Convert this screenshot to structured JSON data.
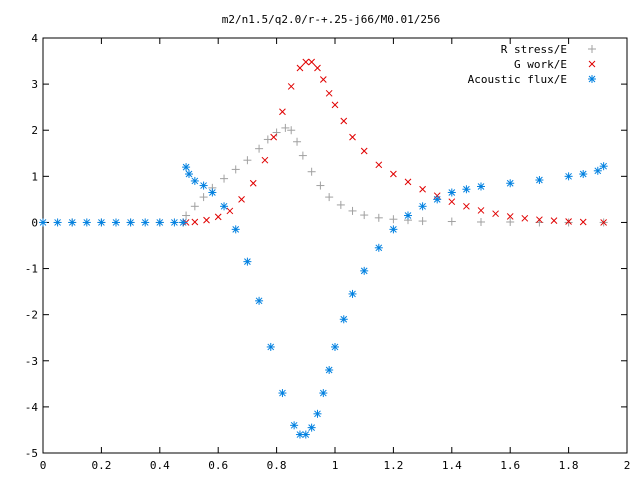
{
  "chart_data": {
    "type": "scatter",
    "title": "m2/n1.5/q2.0/r-+.25-j66/M0.01/256",
    "xlabel": "",
    "ylabel": "",
    "xlim": [
      0,
      2
    ],
    "ylim": [
      -5,
      4
    ],
    "xticks": [
      "0",
      "0.2",
      "0.4",
      "0.6",
      "0.8",
      "1",
      "1.2",
      "1.4",
      "1.6",
      "1.8",
      "2"
    ],
    "yticks": [
      "4",
      "3",
      "2",
      "1",
      "0",
      "-1",
      "-2",
      "-3",
      "-4",
      "-5"
    ],
    "grid": false,
    "legend_position": "top-right",
    "series": [
      {
        "name": "R stress/E",
        "marker": "plus",
        "color": "#a0a0a0",
        "x": [
          0.0,
          0.1,
          0.2,
          0.3,
          0.4,
          0.48,
          0.49,
          0.52,
          0.55,
          0.58,
          0.62,
          0.66,
          0.7,
          0.74,
          0.77,
          0.8,
          0.83,
          0.85,
          0.87,
          0.89,
          0.92,
          0.95,
          0.98,
          1.02,
          1.06,
          1.1,
          1.15,
          1.2,
          1.25,
          1.3,
          1.4,
          1.5,
          1.6,
          1.7,
          1.8,
          1.92
        ],
        "y": [
          0.0,
          0.0,
          0.0,
          0.0,
          0.0,
          0.0,
          0.15,
          0.35,
          0.55,
          0.75,
          0.95,
          1.15,
          1.35,
          1.6,
          1.8,
          1.95,
          2.05,
          2.0,
          1.75,
          1.45,
          1.1,
          0.8,
          0.55,
          0.38,
          0.25,
          0.16,
          0.1,
          0.07,
          0.05,
          0.03,
          0.02,
          0.01,
          0.01,
          0.0,
          0.0,
          0.0
        ]
      },
      {
        "name": "G work/E",
        "marker": "cross",
        "color": "#e00000",
        "x": [
          0.49,
          0.52,
          0.56,
          0.6,
          0.64,
          0.68,
          0.72,
          0.76,
          0.79,
          0.82,
          0.85,
          0.88,
          0.9,
          0.92,
          0.94,
          0.96,
          0.98,
          1.0,
          1.03,
          1.06,
          1.1,
          1.15,
          1.2,
          1.25,
          1.3,
          1.35,
          1.4,
          1.45,
          1.5,
          1.55,
          1.6,
          1.65,
          1.7,
          1.75,
          1.8,
          1.85,
          1.92
        ],
        "y": [
          0.0,
          0.01,
          0.05,
          0.12,
          0.25,
          0.5,
          0.85,
          1.35,
          1.85,
          2.4,
          2.95,
          3.35,
          3.48,
          3.48,
          3.35,
          3.1,
          2.8,
          2.55,
          2.2,
          1.85,
          1.55,
          1.25,
          1.05,
          0.88,
          0.72,
          0.58,
          0.45,
          0.35,
          0.26,
          0.19,
          0.13,
          0.09,
          0.06,
          0.04,
          0.02,
          0.01,
          0.0
        ]
      },
      {
        "name": "Acoustic flux/E",
        "marker": "star",
        "color": "#0080e0",
        "x": [
          0.0,
          0.05,
          0.1,
          0.15,
          0.2,
          0.25,
          0.3,
          0.35,
          0.4,
          0.45,
          0.48,
          0.49,
          0.5,
          0.52,
          0.55,
          0.58,
          0.62,
          0.66,
          0.7,
          0.74,
          0.78,
          0.82,
          0.86,
          0.88,
          0.9,
          0.92,
          0.94,
          0.96,
          0.98,
          1.0,
          1.03,
          1.06,
          1.1,
          1.15,
          1.2,
          1.25,
          1.3,
          1.35,
          1.4,
          1.45,
          1.5,
          1.6,
          1.7,
          1.8,
          1.85,
          1.9,
          1.92
        ],
        "y": [
          0.0,
          0.0,
          0.0,
          0.0,
          0.0,
          0.0,
          0.0,
          0.0,
          0.0,
          0.0,
          0.0,
          1.2,
          1.05,
          0.9,
          0.8,
          0.65,
          0.35,
          -0.15,
          -0.85,
          -1.7,
          -2.7,
          -3.7,
          -4.4,
          -4.6,
          -4.6,
          -4.45,
          -4.15,
          -3.7,
          -3.2,
          -2.7,
          -2.1,
          -1.55,
          -1.05,
          -0.55,
          -0.15,
          0.15,
          0.35,
          0.5,
          0.65,
          0.72,
          0.78,
          0.85,
          0.92,
          1.0,
          1.05,
          1.12,
          1.22
        ]
      }
    ]
  }
}
